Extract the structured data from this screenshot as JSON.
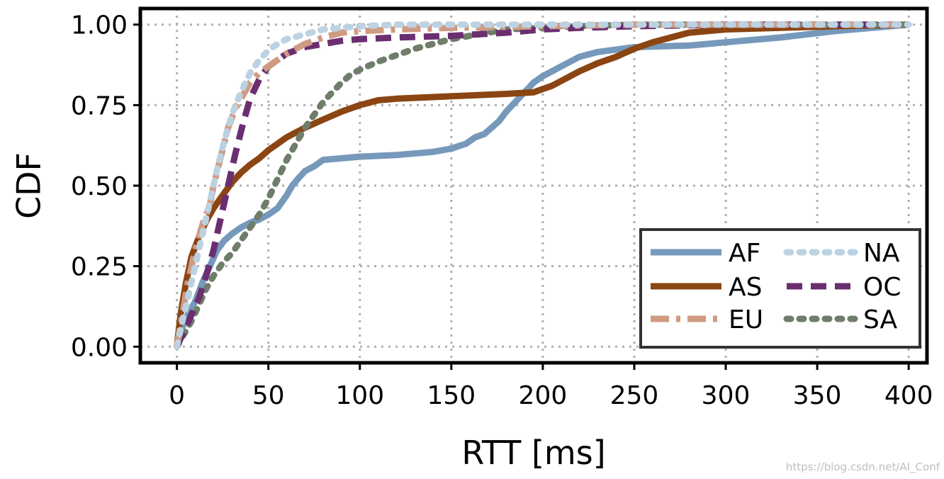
{
  "chart_data": {
    "type": "line",
    "subtype": "cdf",
    "title": "",
    "xlabel": "RTT [ms]",
    "ylabel": "CDF",
    "xlim": [
      -20,
      410
    ],
    "ylim": [
      -0.05,
      1.05
    ],
    "xticks": [
      0,
      50,
      100,
      150,
      200,
      250,
      300,
      350,
      400
    ],
    "xtick_labels": [
      "0",
      "50",
      "100",
      "150",
      "200",
      "250",
      "300",
      "350",
      "400"
    ],
    "yticks": [
      0,
      0.25,
      0.5,
      0.75,
      1.0
    ],
    "ytick_labels": [
      "0.00",
      "0.25",
      "0.50",
      "0.75",
      "1.00"
    ],
    "grid": true,
    "legend_position": "lower-right",
    "legend_columns": 2,
    "series": [
      {
        "name": "AF",
        "color": "#7699bb",
        "dash": "solid",
        "x": [
          0,
          3,
          6,
          10,
          14,
          18,
          22,
          26,
          30,
          35,
          40,
          45,
          50,
          55,
          60,
          63,
          66,
          70,
          75,
          80,
          90,
          100,
          120,
          140,
          150,
          158,
          163,
          168,
          172,
          176,
          180,
          185,
          190,
          195,
          200,
          210,
          220,
          230,
          250,
          280,
          300,
          330,
          360,
          380,
          400
        ],
        "y": [
          0,
          0.06,
          0.1,
          0.14,
          0.2,
          0.25,
          0.3,
          0.33,
          0.35,
          0.37,
          0.385,
          0.395,
          0.41,
          0.43,
          0.47,
          0.5,
          0.52,
          0.545,
          0.56,
          0.58,
          0.585,
          0.59,
          0.595,
          0.605,
          0.615,
          0.63,
          0.65,
          0.66,
          0.68,
          0.7,
          0.73,
          0.76,
          0.79,
          0.82,
          0.84,
          0.87,
          0.9,
          0.915,
          0.93,
          0.935,
          0.945,
          0.96,
          0.98,
          0.99,
          1.0
        ]
      },
      {
        "name": "AS",
        "color": "#8b4513",
        "dash": "solid",
        "x": [
          0,
          2,
          5,
          8,
          12,
          16,
          20,
          25,
          30,
          35,
          40,
          45,
          50,
          55,
          60,
          65,
          70,
          80,
          90,
          100,
          110,
          120,
          140,
          160,
          180,
          195,
          200,
          205,
          210,
          215,
          220,
          230,
          240,
          250,
          260,
          270,
          280,
          300,
          330,
          360,
          400
        ],
        "y": [
          0,
          0.1,
          0.2,
          0.28,
          0.34,
          0.39,
          0.43,
          0.47,
          0.51,
          0.54,
          0.565,
          0.585,
          0.61,
          0.63,
          0.65,
          0.665,
          0.68,
          0.705,
          0.73,
          0.75,
          0.765,
          0.77,
          0.775,
          0.78,
          0.785,
          0.79,
          0.8,
          0.81,
          0.825,
          0.84,
          0.855,
          0.88,
          0.9,
          0.925,
          0.945,
          0.96,
          0.975,
          0.985,
          0.99,
          0.995,
          1.0
        ]
      },
      {
        "name": "EU",
        "color": "#cf9b82",
        "dash": "dashdot",
        "x": [
          0,
          3,
          6,
          10,
          14,
          18,
          20,
          24,
          28,
          32,
          36,
          40,
          45,
          50,
          55,
          60,
          70,
          80,
          90,
          100,
          120,
          150,
          200,
          250,
          300,
          350,
          400
        ],
        "y": [
          0,
          0.1,
          0.2,
          0.3,
          0.38,
          0.44,
          0.5,
          0.59,
          0.68,
          0.74,
          0.78,
          0.82,
          0.85,
          0.87,
          0.89,
          0.91,
          0.94,
          0.96,
          0.975,
          0.98,
          0.985,
          0.99,
          0.995,
          1.0,
          1.0,
          1.0,
          1.0
        ]
      },
      {
        "name": "NA",
        "color": "#bcd2e2",
        "dash": "dotted",
        "x": [
          0,
          3,
          6,
          10,
          14,
          18,
          22,
          26,
          30,
          35,
          40,
          45,
          50,
          55,
          60,
          70,
          80,
          90,
          100,
          120,
          150,
          200,
          400
        ],
        "y": [
          0,
          0.08,
          0.15,
          0.25,
          0.35,
          0.45,
          0.55,
          0.64,
          0.72,
          0.79,
          0.85,
          0.89,
          0.92,
          0.94,
          0.955,
          0.97,
          0.985,
          0.99,
          0.995,
          1.0,
          1.0,
          1.0,
          1.0
        ]
      },
      {
        "name": "OC",
        "color": "#6a2f70",
        "dash": "dashed",
        "x": [
          0,
          4,
          8,
          12,
          16,
          20,
          24,
          28,
          32,
          36,
          40,
          45,
          50,
          55,
          60,
          70,
          80,
          90,
          100,
          120,
          150,
          180,
          200,
          220,
          250,
          300,
          400
        ],
        "y": [
          0,
          0.05,
          0.1,
          0.15,
          0.22,
          0.3,
          0.4,
          0.5,
          0.6,
          0.69,
          0.77,
          0.83,
          0.87,
          0.89,
          0.91,
          0.93,
          0.94,
          0.95,
          0.955,
          0.96,
          0.965,
          0.975,
          0.985,
          0.99,
          0.995,
          1.0,
          1.0
        ]
      },
      {
        "name": "SA",
        "color": "#6f7d6b",
        "dash": "dotted",
        "x": [
          0,
          4,
          8,
          12,
          16,
          20,
          25,
          30,
          35,
          40,
          45,
          50,
          55,
          60,
          65,
          70,
          75,
          80,
          85,
          90,
          95,
          100,
          110,
          120,
          130,
          140,
          150,
          160,
          170,
          180,
          200,
          220,
          250,
          300,
          400
        ],
        "y": [
          0,
          0.04,
          0.08,
          0.13,
          0.18,
          0.22,
          0.26,
          0.29,
          0.33,
          0.37,
          0.41,
          0.46,
          0.52,
          0.58,
          0.63,
          0.68,
          0.72,
          0.76,
          0.79,
          0.82,
          0.845,
          0.86,
          0.885,
          0.905,
          0.925,
          0.94,
          0.955,
          0.965,
          0.975,
          0.985,
          0.99,
          0.995,
          1.0,
          1.0,
          1.0
        ]
      }
    ]
  },
  "watermark": "https://blog.csdn.net/AI_Conf"
}
